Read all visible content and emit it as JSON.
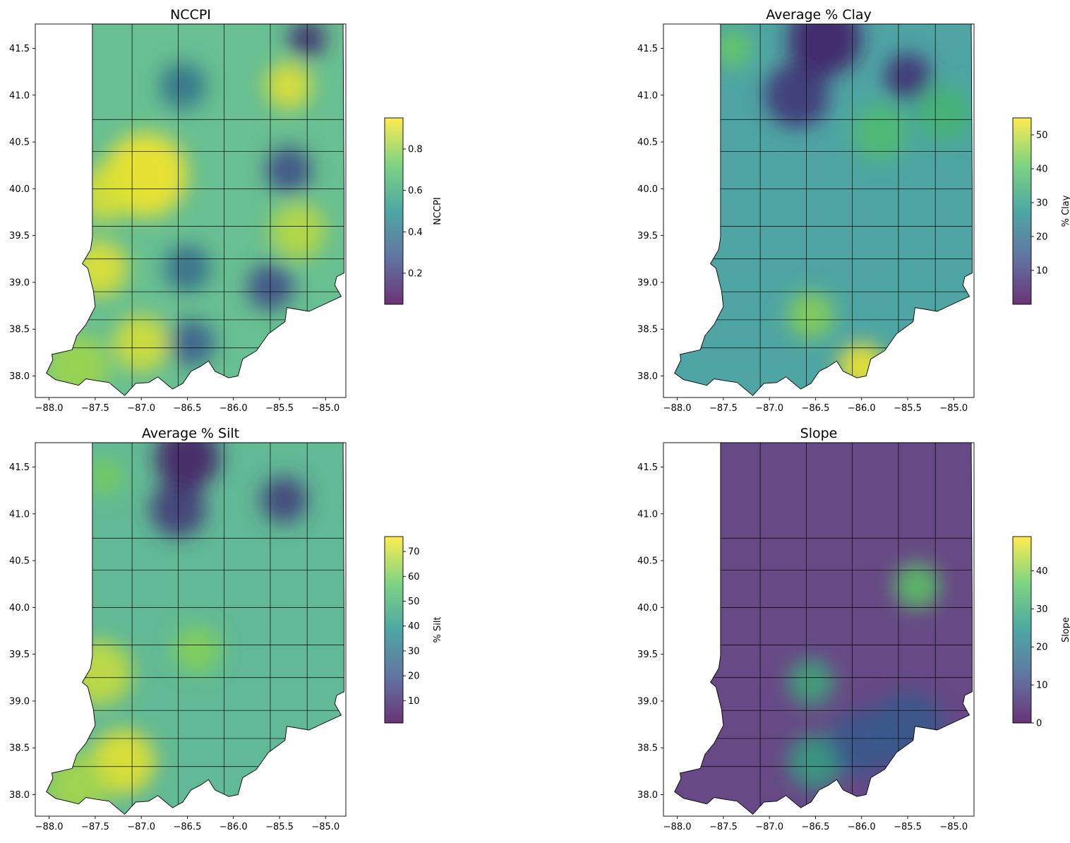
{
  "figure": {
    "panels": [
      {
        "id": "nccpi",
        "title": "NCCPI",
        "colorbar_label": "NCCPI",
        "colorbar_range": [
          0.05,
          0.95
        ],
        "colorbar_ticks": [
          "0.2",
          "0.4",
          "0.6",
          "0.8"
        ],
        "colorbar_tick_values": [
          0.2,
          0.4,
          0.6,
          0.8
        ],
        "blobs": [
          {
            "lon": -86.95,
            "lat": 40.15,
            "v": 0.95,
            "r": 0.45
          },
          {
            "lon": -87.4,
            "lat": 39.95,
            "v": 0.9,
            "r": 0.3
          },
          {
            "lon": -87.45,
            "lat": 39.15,
            "v": 0.92,
            "r": 0.3
          },
          {
            "lon": -87.0,
            "lat": 38.35,
            "v": 0.9,
            "r": 0.3
          },
          {
            "lon": -87.7,
            "lat": 38.1,
            "v": 0.82,
            "r": 0.35
          },
          {
            "lon": -85.4,
            "lat": 41.1,
            "v": 0.92,
            "r": 0.25
          },
          {
            "lon": -85.3,
            "lat": 39.55,
            "v": 0.86,
            "r": 0.3
          },
          {
            "lon": -86.55,
            "lat": 41.1,
            "v": 0.38,
            "r": 0.25
          },
          {
            "lon": -85.4,
            "lat": 40.2,
            "v": 0.25,
            "r": 0.25
          },
          {
            "lon": -85.6,
            "lat": 38.95,
            "v": 0.25,
            "r": 0.25
          },
          {
            "lon": -86.45,
            "lat": 38.35,
            "v": 0.3,
            "r": 0.25
          },
          {
            "lon": -86.5,
            "lat": 39.15,
            "v": 0.35,
            "r": 0.25
          },
          {
            "lon": -85.2,
            "lat": 41.6,
            "v": 0.15,
            "r": 0.2
          }
        ],
        "base": 0.62
      },
      {
        "id": "clay",
        "title": "Average % Clay",
        "colorbar_label": "% Clay",
        "colorbar_range": [
          0,
          55
        ],
        "colorbar_ticks": [
          "10",
          "20",
          "30",
          "40",
          "50"
        ],
        "colorbar_tick_values": [
          10,
          20,
          30,
          40,
          50
        ],
        "blobs": [
          {
            "lon": -86.0,
            "lat": 38.1,
            "v": 55,
            "r": 0.25
          },
          {
            "lon": -86.55,
            "lat": 38.65,
            "v": 45,
            "r": 0.25
          },
          {
            "lon": -86.7,
            "lat": 41.0,
            "v": 8,
            "r": 0.35
          },
          {
            "lon": -85.5,
            "lat": 41.2,
            "v": 7,
            "r": 0.25
          },
          {
            "lon": -86.4,
            "lat": 41.6,
            "v": 4,
            "r": 0.4
          },
          {
            "lon": -87.4,
            "lat": 41.5,
            "v": 42,
            "r": 0.2
          },
          {
            "lon": -85.8,
            "lat": 40.6,
            "v": 38,
            "r": 0.3
          },
          {
            "lon": -85.1,
            "lat": 40.8,
            "v": 36,
            "r": 0.3
          }
        ],
        "base": 27
      },
      {
        "id": "silt",
        "title": "Average % Silt",
        "colorbar_label": "% Silt",
        "colorbar_range": [
          1,
          76
        ],
        "colorbar_ticks": [
          "10",
          "20",
          "30",
          "40",
          "50",
          "60",
          "70"
        ],
        "colorbar_tick_values": [
          10,
          20,
          30,
          40,
          50,
          60,
          70
        ],
        "blobs": [
          {
            "lon": -87.2,
            "lat": 38.35,
            "v": 74,
            "r": 0.35
          },
          {
            "lon": -87.45,
            "lat": 39.3,
            "v": 70,
            "r": 0.35
          },
          {
            "lon": -87.7,
            "lat": 38.1,
            "v": 66,
            "r": 0.35
          },
          {
            "lon": -86.6,
            "lat": 41.05,
            "v": 12,
            "r": 0.3
          },
          {
            "lon": -85.45,
            "lat": 41.15,
            "v": 14,
            "r": 0.25
          },
          {
            "lon": -86.5,
            "lat": 41.6,
            "v": 6,
            "r": 0.35
          },
          {
            "lon": -87.4,
            "lat": 41.4,
            "v": 60,
            "r": 0.2
          },
          {
            "lon": -86.4,
            "lat": 39.55,
            "v": 62,
            "r": 0.25
          }
        ],
        "base": 46
      },
      {
        "id": "slope",
        "title": "Slope",
        "colorbar_label": "Slope",
        "colorbar_range": [
          0,
          49
        ],
        "colorbar_ticks": [
          "0",
          "10",
          "20",
          "30",
          "40"
        ],
        "colorbar_tick_values": [
          0,
          10,
          20,
          30,
          40
        ],
        "blobs": [
          {
            "lon": -85.4,
            "lat": 40.23,
            "v": 36,
            "r": 0.25
          },
          {
            "lon": -86.55,
            "lat": 39.2,
            "v": 30,
            "r": 0.25
          },
          {
            "lon": -86.5,
            "lat": 38.35,
            "v": 28,
            "r": 0.3
          },
          {
            "lon": -86.0,
            "lat": 38.55,
            "v": 14,
            "r": 0.35
          },
          {
            "lon": -85.5,
            "lat": 38.7,
            "v": 14,
            "r": 0.4
          }
        ],
        "base": 4
      }
    ],
    "x_ticks": [
      "−88.0",
      "−87.5",
      "−87.0",
      "−86.5",
      "−86.0",
      "−85.5",
      "−85.0"
    ],
    "x_tick_values": [
      -88.0,
      -87.5,
      -87.0,
      -86.5,
      -86.0,
      -85.5,
      -85.0
    ],
    "y_ticks": [
      "38.0",
      "38.5",
      "39.0",
      "39.5",
      "40.0",
      "40.5",
      "41.0",
      "41.5"
    ],
    "y_tick_values": [
      38.0,
      38.5,
      39.0,
      39.5,
      40.0,
      40.5,
      41.0,
      41.5
    ],
    "lon_range": [
      -88.15,
      -84.78
    ],
    "lat_range": [
      37.77,
      41.76
    ],
    "colormap": [
      "#440154",
      "#3b528b",
      "#21918c",
      "#5ec962",
      "#fde725"
    ]
  }
}
